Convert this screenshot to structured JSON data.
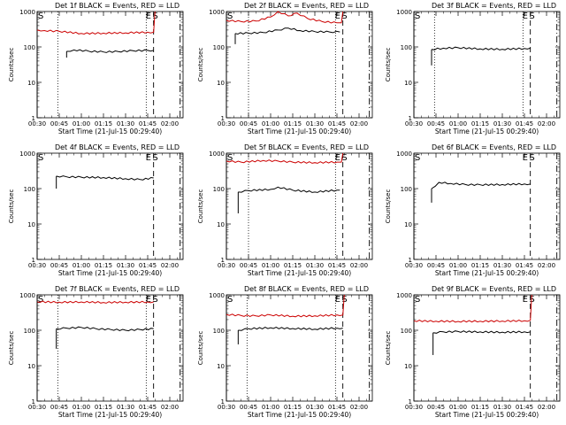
{
  "chart_data": [
    {
      "type": "line",
      "title": "Det 1f BLACK = Events, RED = LLD",
      "xlabel": "Start Time (21-Jul-15 00:29:40)",
      "ylabel": "Counts/sec",
      "yscale": "log",
      "ylim": [
        1,
        1000
      ],
      "xlim": [
        "00:30",
        "02:09"
      ],
      "xticks": [
        "00:30",
        "00:45",
        "01:00",
        "01:15",
        "01:30",
        "01:45",
        "02:00"
      ],
      "yticks": [
        "1",
        "10",
        "100",
        "1000"
      ],
      "series": [
        {
          "color": "#000000",
          "x": [
            "00:50",
            "00:55",
            "01:05",
            "01:15",
            "01:25",
            "01:35",
            "01:45",
            "01:49"
          ],
          "y": [
            75,
            82,
            76,
            72,
            74,
            78,
            80,
            80
          ],
          "start_drop": 50
        },
        {
          "color": "#cc0000",
          "x": [
            "00:30",
            "00:35",
            "00:45",
            "01:00",
            "01:15",
            "01:30",
            "01:45",
            "01:49",
            "01:50"
          ],
          "y": [
            300,
            290,
            275,
            240,
            245,
            250,
            260,
            260,
            1000
          ]
        }
      ],
      "markers": {
        "S": "00:30",
        "E": "01:46",
        "Sb": "01:50",
        "dotted": [
          "00:44",
          "01:44"
        ],
        "dashed": [
          "01:49"
        ],
        "dashdot": [
          "02:07"
        ]
      }
    },
    {
      "type": "line",
      "title": "Det 2f BLACK = Events, RED = LLD",
      "xlabel": "Start Time (21-Jul-15 00:29:40)",
      "ylabel": "Counts/sec",
      "yscale": "log",
      "ylim": [
        1,
        1000
      ],
      "xlim": [
        "00:30",
        "02:09"
      ],
      "xticks": [
        "00:30",
        "00:45",
        "01:00",
        "01:15",
        "01:30",
        "01:45",
        "02:00"
      ],
      "yticks": [
        "1",
        "10",
        "100",
        "1000"
      ],
      "series": [
        {
          "color": "#000000",
          "x": [
            "00:36",
            "00:45",
            "00:55",
            "01:05",
            "01:12",
            "01:20",
            "01:30",
            "01:40",
            "01:47"
          ],
          "y": [
            240,
            245,
            255,
            300,
            340,
            290,
            270,
            265,
            265
          ],
          "start_drop": 120
        },
        {
          "color": "#cc0000",
          "x": [
            "00:30",
            "00:40",
            "00:50",
            "01:00",
            "01:05",
            "01:12",
            "01:18",
            "01:25",
            "01:35",
            "01:45",
            "01:48",
            "01:49"
          ],
          "y": [
            560,
            520,
            540,
            700,
            1000,
            750,
            900,
            640,
            520,
            480,
            480,
            1000
          ]
        }
      ],
      "markers": {
        "S": "00:30",
        "E": "01:46",
        "Sb": "01:50",
        "dotted": [
          "00:45",
          "01:44"
        ],
        "dashed": [
          "01:49"
        ],
        "dashdot": [
          "02:07"
        ]
      }
    },
    {
      "type": "line",
      "title": "Det 3f BLACK = Events, RED = LLD",
      "xlabel": "Start Time (21-Jul-15 00:29:40)",
      "ylabel": "Counts/sec",
      "yscale": "log",
      "ylim": [
        1,
        1000
      ],
      "xlim": [
        "00:30",
        "02:09"
      ],
      "xticks": [
        "00:30",
        "00:45",
        "01:00",
        "01:15",
        "01:30",
        "01:45",
        "02:00"
      ],
      "yticks": [
        "1",
        "10",
        "100",
        "1000"
      ],
      "series": [
        {
          "color": "#000000",
          "x": [
            "00:42",
            "00:50",
            "01:00",
            "01:15",
            "01:30",
            "01:45",
            "01:49"
          ],
          "y": [
            85,
            92,
            95,
            88,
            86,
            90,
            92
          ],
          "start_drop": 30
        }
      ],
      "markers": {
        "S": "00:30",
        "E": "01:46",
        "Sb": "01:50",
        "dotted": [
          "00:44",
          "01:44"
        ],
        "dashed": [
          "01:49"
        ],
        "dashdot": [
          "02:07"
        ]
      }
    },
    {
      "type": "line",
      "title": "Det 4f BLACK = Events, RED = LLD",
      "xlabel": "Start Time (21-Jul-15 00:29:40)",
      "ylabel": "Counts/sec",
      "yscale": "log",
      "ylim": [
        1,
        1000
      ],
      "xlim": [
        "00:30",
        "02:09"
      ],
      "xticks": [
        "00:30",
        "00:45",
        "01:00",
        "01:15",
        "01:30",
        "01:45",
        "02:00"
      ],
      "yticks": [
        "1",
        "10",
        "100",
        "1000"
      ],
      "series": [
        {
          "color": "#000000",
          "x": [
            "00:43",
            "00:50",
            "01:00",
            "01:15",
            "01:30",
            "01:40",
            "01:49"
          ],
          "y": [
            225,
            215,
            210,
            205,
            190,
            180,
            200
          ],
          "start_drop": 100
        }
      ],
      "markers": {
        "S": "00:30",
        "E": "01:46",
        "Sb": "01:50",
        "dotted": [],
        "dashed": [
          "01:49"
        ],
        "dashdot": [
          "02:07"
        ]
      }
    },
    {
      "type": "line",
      "title": "Det 5f BLACK = Events, RED = LLD",
      "xlabel": "Start Time (21-Jul-15 00:29:40)",
      "ylabel": "Counts/sec",
      "yscale": "log",
      "ylim": [
        1,
        1000
      ],
      "xlim": [
        "00:30",
        "02:09"
      ],
      "xticks": [
        "00:30",
        "00:45",
        "01:00",
        "01:15",
        "01:30",
        "01:45",
        "02:00"
      ],
      "yticks": [
        "1",
        "10",
        "100",
        "1000"
      ],
      "series": [
        {
          "color": "#000000",
          "x": [
            "00:38",
            "00:45",
            "01:00",
            "01:05",
            "01:15",
            "01:30",
            "01:45",
            "01:47"
          ],
          "y": [
            80,
            88,
            95,
            110,
            90,
            80,
            90,
            90
          ],
          "start_drop": 20
        },
        {
          "color": "#cc0000",
          "x": [
            "00:30",
            "00:40",
            "00:55",
            "01:05",
            "01:15",
            "01:30",
            "01:45",
            "01:48",
            "01:49"
          ],
          "y": [
            600,
            560,
            620,
            600,
            560,
            540,
            560,
            560,
            1000
          ]
        }
      ],
      "markers": {
        "S": "00:30",
        "E": "01:46",
        "Sb": "01:50",
        "dotted": [
          "00:45",
          "01:44"
        ],
        "dashed": [
          "01:49"
        ],
        "dashdot": [
          "02:07"
        ]
      }
    },
    {
      "type": "line",
      "title": "Det 6f BLACK = Events, RED = LLD",
      "xlabel": "Start Time (21-Jul-15 00:29:40)",
      "ylabel": "Counts/sec",
      "yscale": "log",
      "ylim": [
        1,
        1000
      ],
      "xlim": [
        "00:30",
        "02:09"
      ],
      "xticks": [
        "00:30",
        "00:45",
        "01:00",
        "01:15",
        "01:30",
        "01:45",
        "02:00"
      ],
      "yticks": [
        "1",
        "10",
        "100",
        "1000"
      ],
      "series": [
        {
          "color": "#000000",
          "x": [
            "00:42",
            "00:47",
            "00:55",
            "01:05",
            "01:15",
            "01:30",
            "01:45",
            "01:49"
          ],
          "y": [
            100,
            150,
            140,
            130,
            128,
            130,
            135,
            135
          ],
          "start_drop": 40
        }
      ],
      "markers": {
        "S": "00:30",
        "E": "01:46",
        "Sb": "01:50",
        "dotted": [],
        "dashed": [
          "01:49"
        ],
        "dashdot": [
          "02:07"
        ]
      }
    },
    {
      "type": "line",
      "title": "Det 7f BLACK = Events, RED = LLD",
      "xlabel": "Start Time (21-Jul-15 00:29:40)",
      "ylabel": "Counts/sec",
      "yscale": "log",
      "ylim": [
        1,
        1000
      ],
      "xlim": [
        "00:30",
        "02:09"
      ],
      "xticks": [
        "00:30",
        "00:45",
        "01:00",
        "01:15",
        "01:30",
        "01:45",
        "02:00"
      ],
      "yticks": [
        "1",
        "10",
        "100",
        "1000"
      ],
      "series": [
        {
          "color": "#000000",
          "x": [
            "00:43",
            "00:50",
            "01:00",
            "01:10",
            "01:20",
            "01:30",
            "01:40",
            "01:49"
          ],
          "y": [
            110,
            115,
            120,
            110,
            105,
            100,
            105,
            110
          ],
          "start_drop": 30
        },
        {
          "color": "#cc0000",
          "x": [
            "00:30",
            "00:45",
            "01:00",
            "01:15",
            "01:30",
            "01:45",
            "01:49"
          ],
          "y": [
            640,
            620,
            630,
            610,
            620,
            630,
            630
          ]
        }
      ],
      "markers": {
        "S": "00:30",
        "E": "01:46",
        "Sb": "01:50",
        "dotted": [
          "00:44",
          "01:44"
        ],
        "dashed": [
          "01:49"
        ],
        "dashdot": [
          "02:07"
        ]
      }
    },
    {
      "type": "line",
      "title": "Det 8f BLACK = Events, RED = LLD",
      "xlabel": "Start Time (21-Jul-15 00:29:40)",
      "ylabel": "Counts/sec",
      "yscale": "log",
      "ylim": [
        1,
        1000
      ],
      "xlim": [
        "00:30",
        "02:09"
      ],
      "xticks": [
        "00:30",
        "00:45",
        "01:00",
        "01:15",
        "01:30",
        "01:45",
        "02:00"
      ],
      "yticks": [
        "1",
        "10",
        "100",
        "1000"
      ],
      "series": [
        {
          "color": "#000000",
          "x": [
            "00:38",
            "00:45",
            "01:00",
            "01:15",
            "01:30",
            "01:45",
            "01:49"
          ],
          "y": [
            100,
            110,
            118,
            112,
            108,
            115,
            115
          ],
          "start_drop": 40
        },
        {
          "color": "#cc0000",
          "x": [
            "00:30",
            "00:40",
            "00:50",
            "01:00",
            "01:15",
            "01:30",
            "01:45",
            "01:49",
            "01:50"
          ],
          "y": [
            280,
            260,
            255,
            270,
            250,
            255,
            270,
            270,
            1000
          ]
        }
      ],
      "markers": {
        "S": "00:30",
        "E": "01:46",
        "Sb": "01:50",
        "dotted": [
          "00:44",
          "01:44"
        ],
        "dashed": [
          "01:49"
        ],
        "dashdot": [
          "02:07"
        ]
      }
    },
    {
      "type": "line",
      "title": "Det 9f BLACK = Events, RED = LLD",
      "xlabel": "Start Time (21-Jul-15 00:29:40)",
      "ylabel": "Counts/sec",
      "yscale": "log",
      "ylim": [
        1,
        1000
      ],
      "xlim": [
        "00:30",
        "02:09"
      ],
      "xticks": [
        "00:30",
        "00:45",
        "01:00",
        "01:15",
        "01:30",
        "01:45",
        "02:00"
      ],
      "yticks": [
        "1",
        "10",
        "100",
        "1000"
      ],
      "series": [
        {
          "color": "#000000",
          "x": [
            "00:43",
            "00:50",
            "01:00",
            "01:15",
            "01:30",
            "01:45",
            "01:49"
          ],
          "y": [
            85,
            90,
            92,
            90,
            88,
            90,
            90
          ],
          "start_drop": 20
        },
        {
          "color": "#cc0000",
          "x": [
            "00:30",
            "00:45",
            "01:00",
            "01:15",
            "01:30",
            "01:45",
            "01:49",
            "01:50"
          ],
          "y": [
            185,
            180,
            178,
            180,
            182,
            185,
            190,
            1000
          ]
        }
      ],
      "markers": {
        "S": "00:30",
        "E": "01:46",
        "Sb": "01:50",
        "dotted": [],
        "dashed": [
          "01:49"
        ],
        "dashdot": [
          "02:07"
        ]
      }
    }
  ],
  "marker_labels": {
    "start": "S",
    "end": "E",
    "second": "S"
  }
}
